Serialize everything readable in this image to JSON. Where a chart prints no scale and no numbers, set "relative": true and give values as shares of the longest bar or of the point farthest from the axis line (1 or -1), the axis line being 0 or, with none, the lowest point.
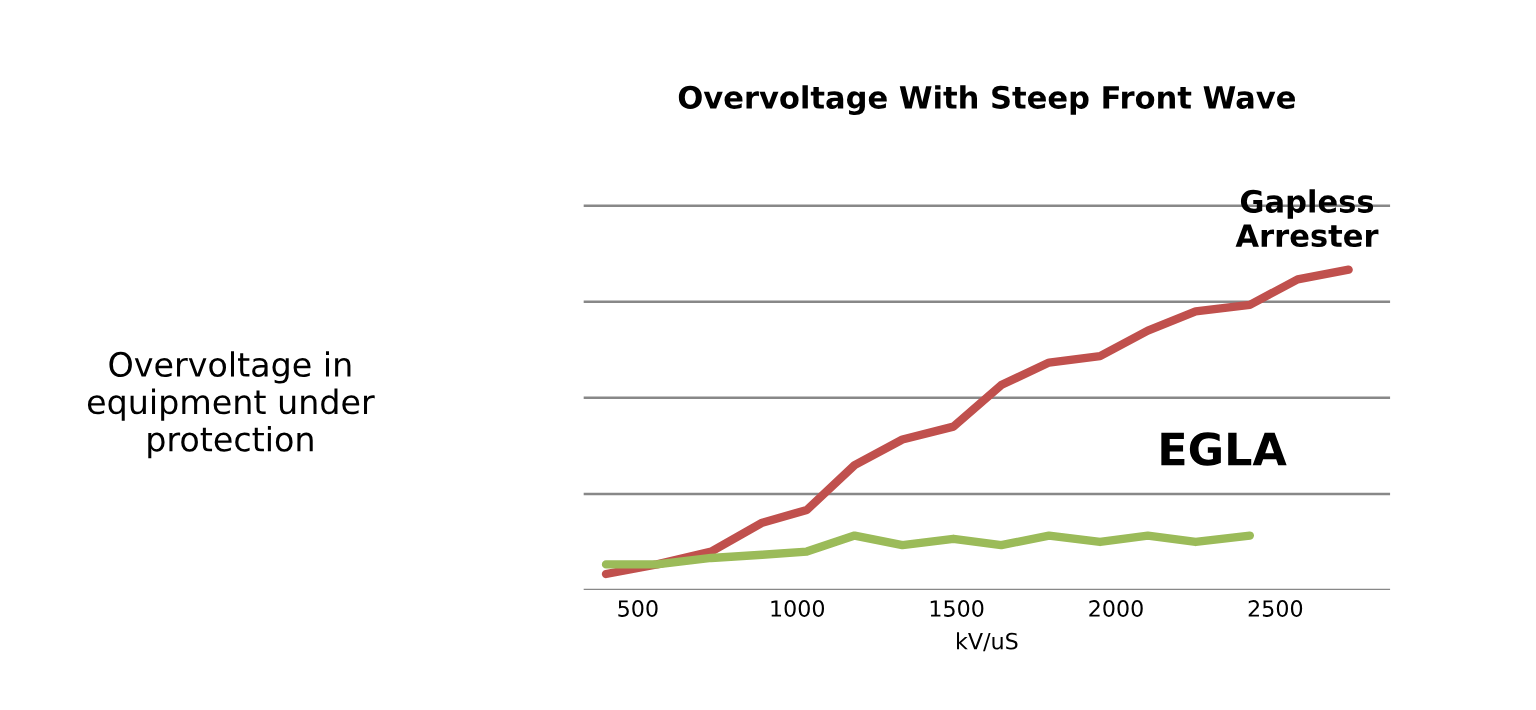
{
  "chart_data": {
    "type": "line",
    "title": "Overvoltage With Steep Front Wave",
    "xlabel": "kV/uS",
    "annotations": [
      "Overvoltage in\nequipment under\nprotection"
    ],
    "relative": true,
    "grid": "y",
    "legend": false,
    "marker": "none",
    "line_style": "solid",
    "xlim": [
      330,
      2860
    ],
    "xticks": [
      500,
      1000,
      1500,
      2000,
      2500
    ],
    "series": [
      {
        "name": "Gapless Arrester",
        "color": "#c0504d",
        "x": [
          400,
          560,
          730,
          890,
          1030,
          1180,
          1330,
          1490,
          1640,
          1790,
          1950,
          2100,
          2250,
          2420,
          2570,
          2730
        ],
        "values": [
          0.05,
          0.08,
          0.12,
          0.21,
          0.25,
          0.39,
          0.47,
          0.51,
          0.64,
          0.71,
          0.73,
          0.81,
          0.87,
          0.89,
          0.97,
          1
        ]
      },
      {
        "name": "EGLA",
        "color": "#9bbb59",
        "x": [
          400,
          560,
          730,
          890,
          1030,
          1180,
          1330,
          1490,
          1640,
          1790,
          1950,
          2100,
          2250,
          2420
        ],
        "values": [
          0.08,
          0.08,
          0.1,
          0.11,
          0.12,
          0.17,
          0.14,
          0.16,
          0.14,
          0.17,
          0.15,
          0.17,
          0.15,
          0.17
        ]
      }
    ]
  }
}
